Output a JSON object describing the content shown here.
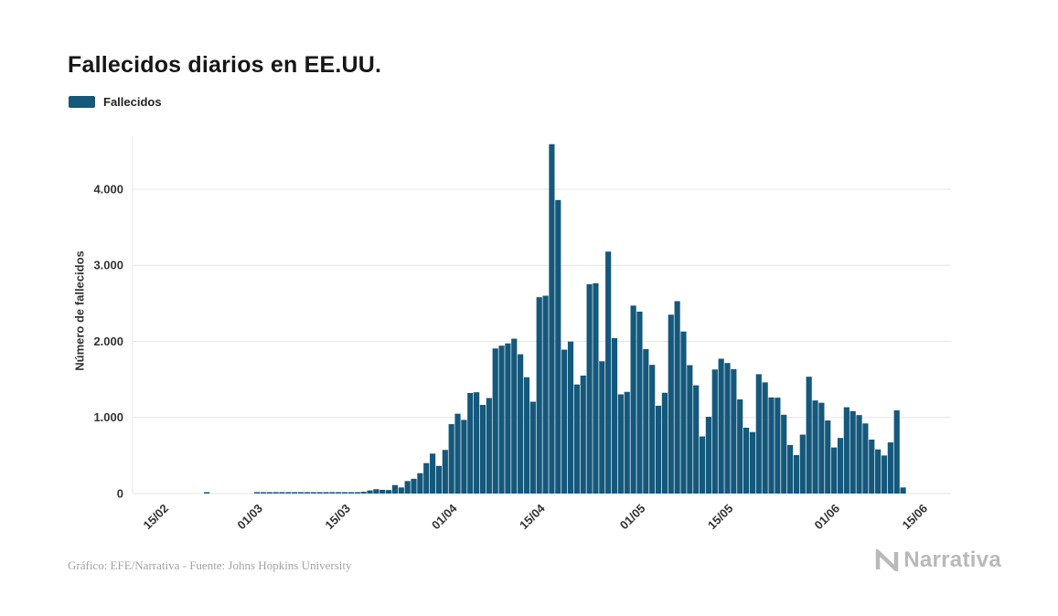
{
  "page": {
    "title": "Fallecidos diarios en EE.UU.",
    "footer_credit": "Gráfico: EFE/Narrativa - Fuente: Johns Hopkins University",
    "brand": "Narrativa"
  },
  "legend": {
    "label": "Fallecidos"
  },
  "chart_data": {
    "type": "bar",
    "title": "Fallecidos diarios en EE.UU.",
    "xlabel": "",
    "ylabel": "Número de fallecidos",
    "bar_color": "#14587c",
    "grid": "horizontal",
    "legend_position": "top-left",
    "ylim": [
      0,
      4600
    ],
    "y_ticks": [
      0,
      1000,
      2000,
      3000,
      4000
    ],
    "y_tick_labels": [
      "0",
      "1.000",
      "2.000",
      "3.000",
      "4.000"
    ],
    "x_ticks": [
      "15/02",
      "01/03",
      "15/03",
      "01/04",
      "15/04",
      "01/05",
      "15/05",
      "01/06",
      "15/06"
    ],
    "x_tick_positions": [
      0,
      15,
      29,
      46,
      60,
      76,
      90,
      107,
      121
    ],
    "categories": [
      "15/02",
      "16/02",
      "17/02",
      "18/02",
      "19/02",
      "20/02",
      "21/02",
      "22/02",
      "23/02",
      "24/02",
      "25/02",
      "26/02",
      "27/02",
      "28/02",
      "29/02",
      "01/03",
      "02/03",
      "03/03",
      "04/03",
      "05/03",
      "06/03",
      "07/03",
      "08/03",
      "09/03",
      "10/03",
      "11/03",
      "12/03",
      "13/03",
      "14/03",
      "15/03",
      "16/03",
      "17/03",
      "18/03",
      "19/03",
      "20/03",
      "21/03",
      "22/03",
      "23/03",
      "24/03",
      "25/03",
      "26/03",
      "27/03",
      "28/03",
      "29/03",
      "30/03",
      "31/03",
      "01/04",
      "02/04",
      "03/04",
      "04/04",
      "05/04",
      "06/04",
      "07/04",
      "08/04",
      "09/04",
      "10/04",
      "11/04",
      "12/04",
      "13/04",
      "14/04",
      "15/04",
      "16/04",
      "17/04",
      "18/04",
      "19/04",
      "20/04",
      "21/04",
      "22/04",
      "23/04",
      "24/04",
      "25/04",
      "26/04",
      "27/04",
      "28/04",
      "29/04",
      "30/04",
      "01/05",
      "02/05",
      "03/05",
      "04/05",
      "05/05",
      "06/05",
      "07/05",
      "08/05",
      "09/05",
      "10/05",
      "11/05",
      "12/05",
      "13/05",
      "14/05",
      "15/05",
      "16/05",
      "17/05",
      "18/05",
      "19/05",
      "20/05",
      "21/05",
      "22/05",
      "23/05",
      "24/05",
      "25/05",
      "26/05",
      "27/05",
      "28/05",
      "29/05",
      "30/05",
      "31/05",
      "01/06",
      "02/06",
      "03/06",
      "04/06",
      "05/06",
      "06/06",
      "07/06",
      "08/06",
      "09/06",
      "10/06",
      "11/06"
    ],
    "series": [
      {
        "name": "Fallecidos",
        "values": [
          0,
          0,
          0,
          0,
          0,
          0,
          1,
          0,
          0,
          0,
          0,
          0,
          0,
          0,
          1,
          1,
          5,
          1,
          4,
          1,
          3,
          2,
          3,
          4,
          4,
          8,
          3,
          9,
          11,
          11,
          18,
          23,
          41,
          57,
          49,
          46,
          111,
          80,
          164,
          194,
          267,
          400,
          525,
          363,
          573,
          912,
          1049,
          968,
          1321,
          1331,
          1165,
          1255,
          1906,
          1943,
          1973,
          2035,
          1830,
          1528,
          1207,
          2580,
          2600,
          4591,
          3857,
          1891,
          1997,
          1433,
          1550,
          2751,
          2763,
          1738,
          3179,
          2042,
          1303,
          1336,
          2470,
          2390,
          1897,
          1691,
          1154,
          1324,
          2350,
          2528,
          2129,
          1687,
          1422,
          750,
          1008,
          1630,
          1772,
          1715,
          1635,
          1237,
          865,
          808,
          1568,
          1461,
          1263,
          1260,
          1035,
          638,
          505,
          774,
          1535,
          1223,
          1193,
          960,
          605,
          730,
          1134,
          1083,
          1031,
          921,
          709,
          580,
          500,
          672,
          1093,
          80
        ]
      }
    ]
  }
}
